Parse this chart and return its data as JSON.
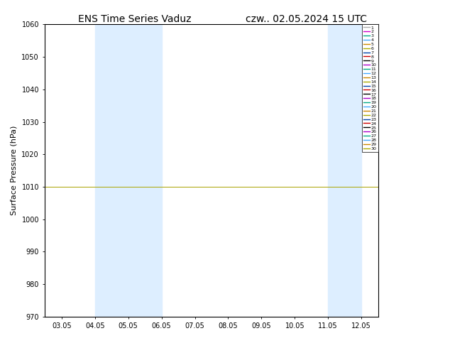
{
  "title_left": "ENS Time Series Vaduz",
  "title_right": "czw.. 02.05.2024 15 UTC",
  "ylabel": "Surface Pressure (hPa)",
  "ylim": [
    970,
    1060
  ],
  "yticks": [
    970,
    980,
    990,
    1000,
    1010,
    1020,
    1030,
    1040,
    1050,
    1060
  ],
  "xtick_labels": [
    "03.05",
    "04.05",
    "05.05",
    "06.05",
    "07.05",
    "08.05",
    "09.05",
    "10.05",
    "11.05",
    "12.05"
  ],
  "shaded_color": "#ddeeff",
  "num_members": 30,
  "figsize": [
    6.34,
    4.9
  ],
  "dpi": 100,
  "member_colors": [
    "#aaaaaa",
    "#cc00cc",
    "#00aa88",
    "#44aaff",
    "#cc8800",
    "#aaaa00",
    "#0044aa",
    "#cc0000",
    "#000000",
    "#aa00cc",
    "#00aa88",
    "#44aaff",
    "#cc8800",
    "#aaaa00",
    "#0044aa",
    "#cc0000",
    "#000000",
    "#aa00cc",
    "#00aa88",
    "#44aaff",
    "#cc8800",
    "#aaaa00",
    "#0044aa",
    "#cc0000",
    "#000000",
    "#aa00cc",
    "#00aa88",
    "#44aaff",
    "#cc8800",
    "#aaaa00"
  ]
}
